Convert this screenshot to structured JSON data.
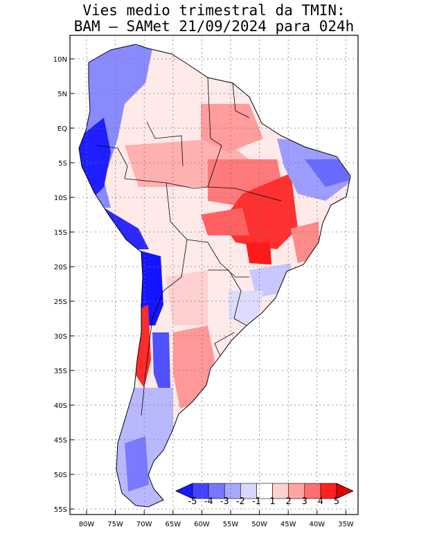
{
  "title": {
    "line1": "Vies medio trimestral da TMIN:",
    "line2": "BAM – SAMet 21/09/2024  para 024h"
  },
  "map": {
    "lat_labels": [
      "10N",
      "5N",
      "EQ",
      "5S",
      "10S",
      "15S",
      "20S",
      "25S",
      "30S",
      "35S",
      "40S",
      "45S",
      "50S",
      "55S"
    ],
    "lon_labels": [
      "80W",
      "75W",
      "70W",
      "65W",
      "60W",
      "55W",
      "50W",
      "45W",
      "40W",
      "35W"
    ],
    "grid": "dotted"
  },
  "colorbar": {
    "labels": [
      "-5",
      "-4",
      "-3",
      "-2",
      "-1",
      "1",
      "2",
      "3",
      "4",
      "5"
    ],
    "colors": [
      "#1a1aff",
      "#4444ff",
      "#7777ff",
      "#a8a8ff",
      "#d6d6ff",
      "#ffffff",
      "#ffd2d2",
      "#ffa3a3",
      "#ff7070",
      "#ff2020",
      "#e00000"
    ]
  }
}
